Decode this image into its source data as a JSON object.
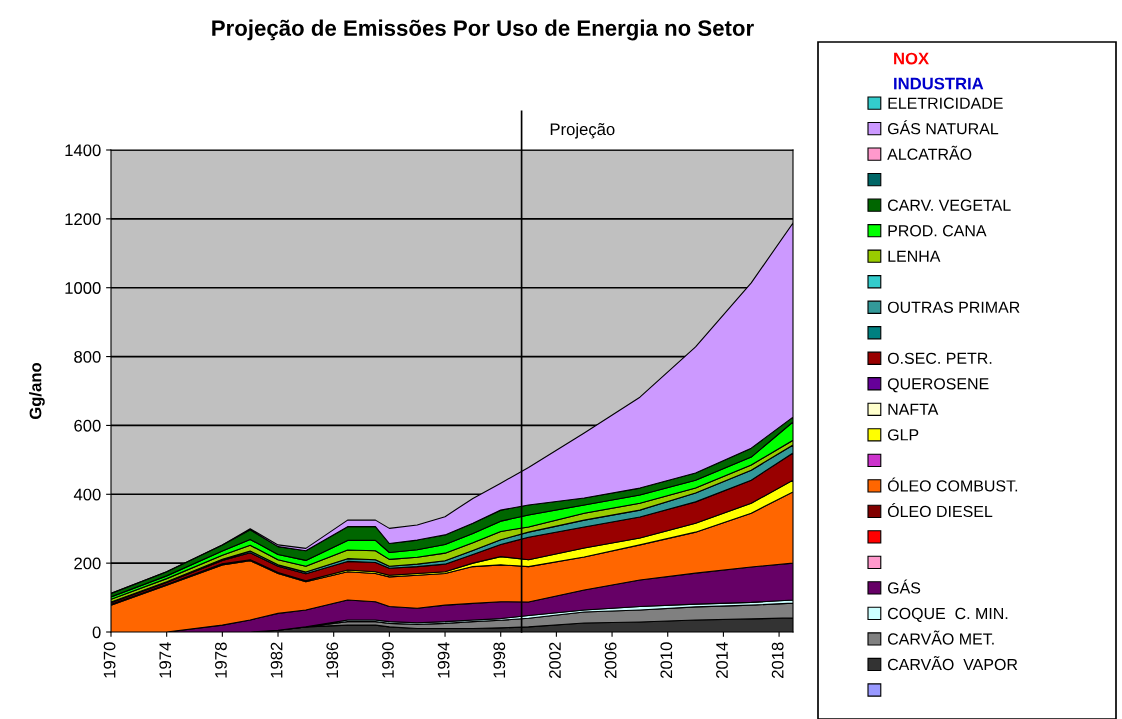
{
  "chart_data": {
    "type": "area",
    "stacked": true,
    "title": "Projeção de Emissões Por Uso de Energia no Setor",
    "ylabel": "Gg/ano",
    "annotations": [
      "NOX",
      "INDUSTRIA"
    ],
    "x": [
      1970,
      1974,
      1978,
      1980,
      1982,
      1984,
      1987,
      1989,
      1990,
      1992,
      1994,
      1996,
      1998,
      2000,
      2004,
      2008,
      2012,
      2016,
      2019
    ],
    "xlim": [
      1970,
      2019
    ],
    "xticks": [
      1970,
      1974,
      1978,
      1982,
      1986,
      1990,
      1994,
      1998,
      2002,
      2006,
      2010,
      2014,
      2018
    ],
    "ylim": [
      0,
      1400
    ],
    "yticks": [
      0,
      200,
      400,
      600,
      800,
      1000,
      1200,
      1400
    ],
    "grid": "y",
    "legend": "right",
    "ref_lines": [
      {
        "axis": "x",
        "value": 1999.5,
        "label": "Projeção",
        "color": "#000000",
        "line_style": "solid"
      }
    ],
    "series": [
      {
        "color": "#9999ff",
        "values": [
          null,
          null,
          null,
          null,
          null,
          null,
          null,
          null,
          null,
          null,
          null,
          null,
          null,
          null,
          null,
          null,
          null,
          null,
          null
        ]
      },
      {
        "name": "CARVÃO  VAPOR",
        "color": "#333333",
        "values": [
          0,
          0,
          0,
          0,
          5,
          15,
          20,
          20,
          15,
          10,
          10,
          10,
          12,
          15,
          26,
          29,
          35,
          38,
          41
        ]
      },
      {
        "name": "CARVÃO MET.",
        "color": "#808080",
        "values": [
          0,
          0,
          0,
          0,
          0,
          0,
          10,
          10,
          10,
          12,
          15,
          20,
          22,
          25,
          32,
          35,
          38,
          40,
          43
        ]
      },
      {
        "name": "COQUE  C. MIN.",
        "color": "#ccffff",
        "values": [
          0,
          0,
          0,
          0,
          0,
          0,
          5,
          5,
          5,
          5,
          5,
          5,
          5,
          8,
          6,
          10,
          8,
          8,
          9
        ]
      },
      {
        "name": "GÁS",
        "color": "#660066",
        "values": [
          0,
          0,
          20,
          35,
          49,
          49,
          58,
          53,
          44,
          42,
          48,
          48,
          49,
          39,
          58,
          77,
          90,
          103,
          107
        ]
      },
      {
        "color": "#ff99cc",
        "values": [
          null,
          null,
          null,
          null,
          null,
          null,
          null,
          null,
          null,
          null,
          null,
          null,
          null,
          null,
          null,
          null,
          null,
          null,
          null
        ]
      },
      {
        "color": "#ff0000",
        "values": [
          null,
          null,
          null,
          null,
          null,
          null,
          null,
          null,
          null,
          null,
          null,
          null,
          null,
          null,
          null,
          null,
          null,
          null,
          null
        ]
      },
      {
        "name": "ÓLEO DIESEL",
        "color": "#800000",
        "values": [
          null,
          null,
          null,
          null,
          null,
          null,
          null,
          null,
          null,
          null,
          null,
          null,
          null,
          null,
          null,
          null,
          null,
          null,
          null
        ]
      },
      {
        "name": "ÓLEO COMBUST.",
        "color": "#ff6600",
        "values": [
          78,
          136,
          175,
          172,
          116,
          82,
          82,
          82,
          86,
          96,
          92,
          107,
          107,
          103,
          96,
          102,
          119,
          156,
          207
        ]
      },
      {
        "color": "#cc33cc",
        "values": [
          null,
          null,
          null,
          null,
          null,
          null,
          null,
          null,
          null,
          null,
          null,
          null,
          null,
          null,
          null,
          null,
          null,
          null,
          null
        ]
      },
      {
        "name": "GLP",
        "color": "#ffff00",
        "values": [
          2,
          2,
          3,
          3,
          3,
          3,
          5,
          5,
          5,
          5,
          5,
          10,
          24,
          20,
          26,
          20,
          26,
          29,
          34
        ]
      },
      {
        "name": "NAFTA",
        "color": "#ffffcc",
        "values": [
          null,
          null,
          null,
          null,
          null,
          null,
          null,
          null,
          null,
          null,
          null,
          null,
          null,
          null,
          null,
          null,
          null,
          null,
          null
        ]
      },
      {
        "name": "QUEROSENE",
        "color": "#660099",
        "values": [
          null,
          null,
          null,
          null,
          null,
          null,
          null,
          null,
          null,
          null,
          null,
          null,
          null,
          null,
          null,
          null,
          null,
          null,
          null
        ]
      },
      {
        "name": "O.SEC. PETR.",
        "color": "#990000",
        "values": [
          5,
          6,
          10,
          20,
          18,
          20,
          25,
          27,
          20,
          20,
          22,
          25,
          35,
          65,
          61,
          61,
          62,
          67,
          79
        ]
      },
      {
        "color": "#008080",
        "values": [
          null,
          null,
          null,
          null,
          null,
          null,
          null,
          null,
          null,
          null,
          null,
          null,
          null,
          null,
          null,
          null,
          null,
          null,
          null
        ]
      },
      {
        "name": "OUTRAS PRIMAR",
        "color": "#339999",
        "values": [
          2,
          2,
          3,
          5,
          4,
          5,
          8,
          8,
          6,
          7,
          10,
          12,
          14,
          15,
          20,
          20,
          26,
          29,
          23
        ]
      },
      {
        "color": "#33cccc",
        "values": [
          null,
          null,
          null,
          null,
          null,
          null,
          null,
          null,
          null,
          null,
          null,
          null,
          null,
          null,
          null,
          null,
          null,
          null,
          null
        ]
      },
      {
        "name": "LENHA",
        "color": "#99cc00",
        "values": [
          8,
          9,
          12,
          17,
          15,
          17,
          25,
          26,
          20,
          20,
          22,
          22,
          24,
          15,
          20,
          20,
          14,
          15,
          14
        ]
      },
      {
        "name": "PROD. CANA",
        "color": "#00ff00",
        "values": [
          7,
          8,
          12,
          17,
          15,
          17,
          28,
          30,
          20,
          22,
          25,
          27,
          30,
          35,
          24,
          24,
          23,
          23,
          53
        ]
      },
      {
        "name": "CARV. VEGETAL",
        "color": "#006600",
        "values": [
          10,
          12,
          18,
          28,
          23,
          28,
          40,
          40,
          26,
          28,
          28,
          30,
          32,
          29,
          20,
          20,
          21,
          26,
          14
        ]
      },
      {
        "color": "#006666",
        "values": [
          null,
          null,
          null,
          null,
          null,
          null,
          null,
          null,
          null,
          null,
          null,
          null,
          null,
          null,
          null,
          null,
          null,
          null,
          null
        ]
      },
      {
        "name": "ALCATRÃO",
        "color": "#ff99cc",
        "values": [
          null,
          null,
          null,
          null,
          null,
          null,
          null,
          null,
          null,
          null,
          null,
          null,
          null,
          null,
          null,
          null,
          null,
          null,
          null
        ]
      },
      {
        "name": "GÁS NATURAL",
        "color": "#cc99ff",
        "values": [
          0,
          0,
          0,
          3,
          5,
          7,
          19,
          19,
          44,
          44,
          53,
          72,
          78,
          109,
          189,
          264,
          366,
          480,
          564
        ]
      },
      {
        "name": "ELETRICIDADE",
        "color": "#33cccc",
        "values": [
          null,
          null,
          null,
          null,
          null,
          null,
          null,
          null,
          null,
          null,
          null,
          null,
          null,
          null,
          null,
          null,
          null,
          null,
          null
        ]
      }
    ]
  }
}
